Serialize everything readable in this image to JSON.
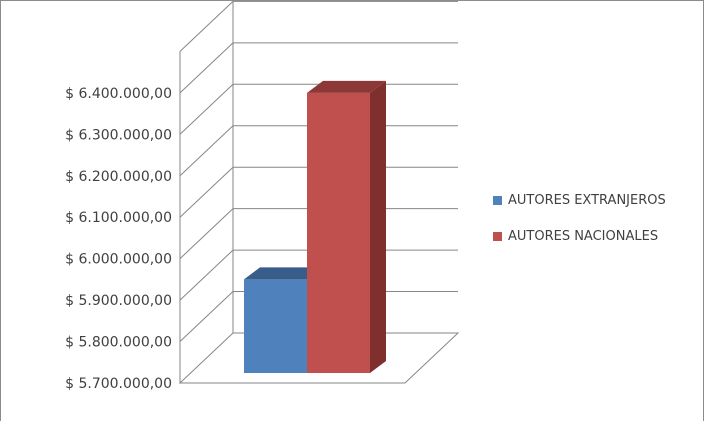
{
  "chart_data": {
    "type": "bar",
    "three_d": true,
    "categories": [
      ""
    ],
    "series": [
      {
        "name": "AUTORES EXTRANJEROS",
        "values": [
          5950000
        ],
        "color": "#4f81bd"
      },
      {
        "name": "AUTORES NACIONALES",
        "values": [
          6400000
        ],
        "color": "#c0504d"
      }
    ],
    "y_ticks": [
      {
        "value": 5700000,
        "label": "$ 5.700.000,00"
      },
      {
        "value": 5800000,
        "label": "$ 5.800.000,00"
      },
      {
        "value": 5900000,
        "label": "$ 5.900.000,00"
      },
      {
        "value": 6000000,
        "label": "$ 6.000.000,00"
      },
      {
        "value": 6100000,
        "label": "$ 6.100.000,00"
      },
      {
        "value": 6200000,
        "label": "$ 6.200.000,00"
      },
      {
        "value": 6300000,
        "label": "$ 6.300.000,00"
      },
      {
        "value": 6400000,
        "label": "$ 6.400.000,00"
      }
    ],
    "ylim": [
      5700000,
      6450000
    ],
    "grid": true,
    "legend_position": "right"
  }
}
